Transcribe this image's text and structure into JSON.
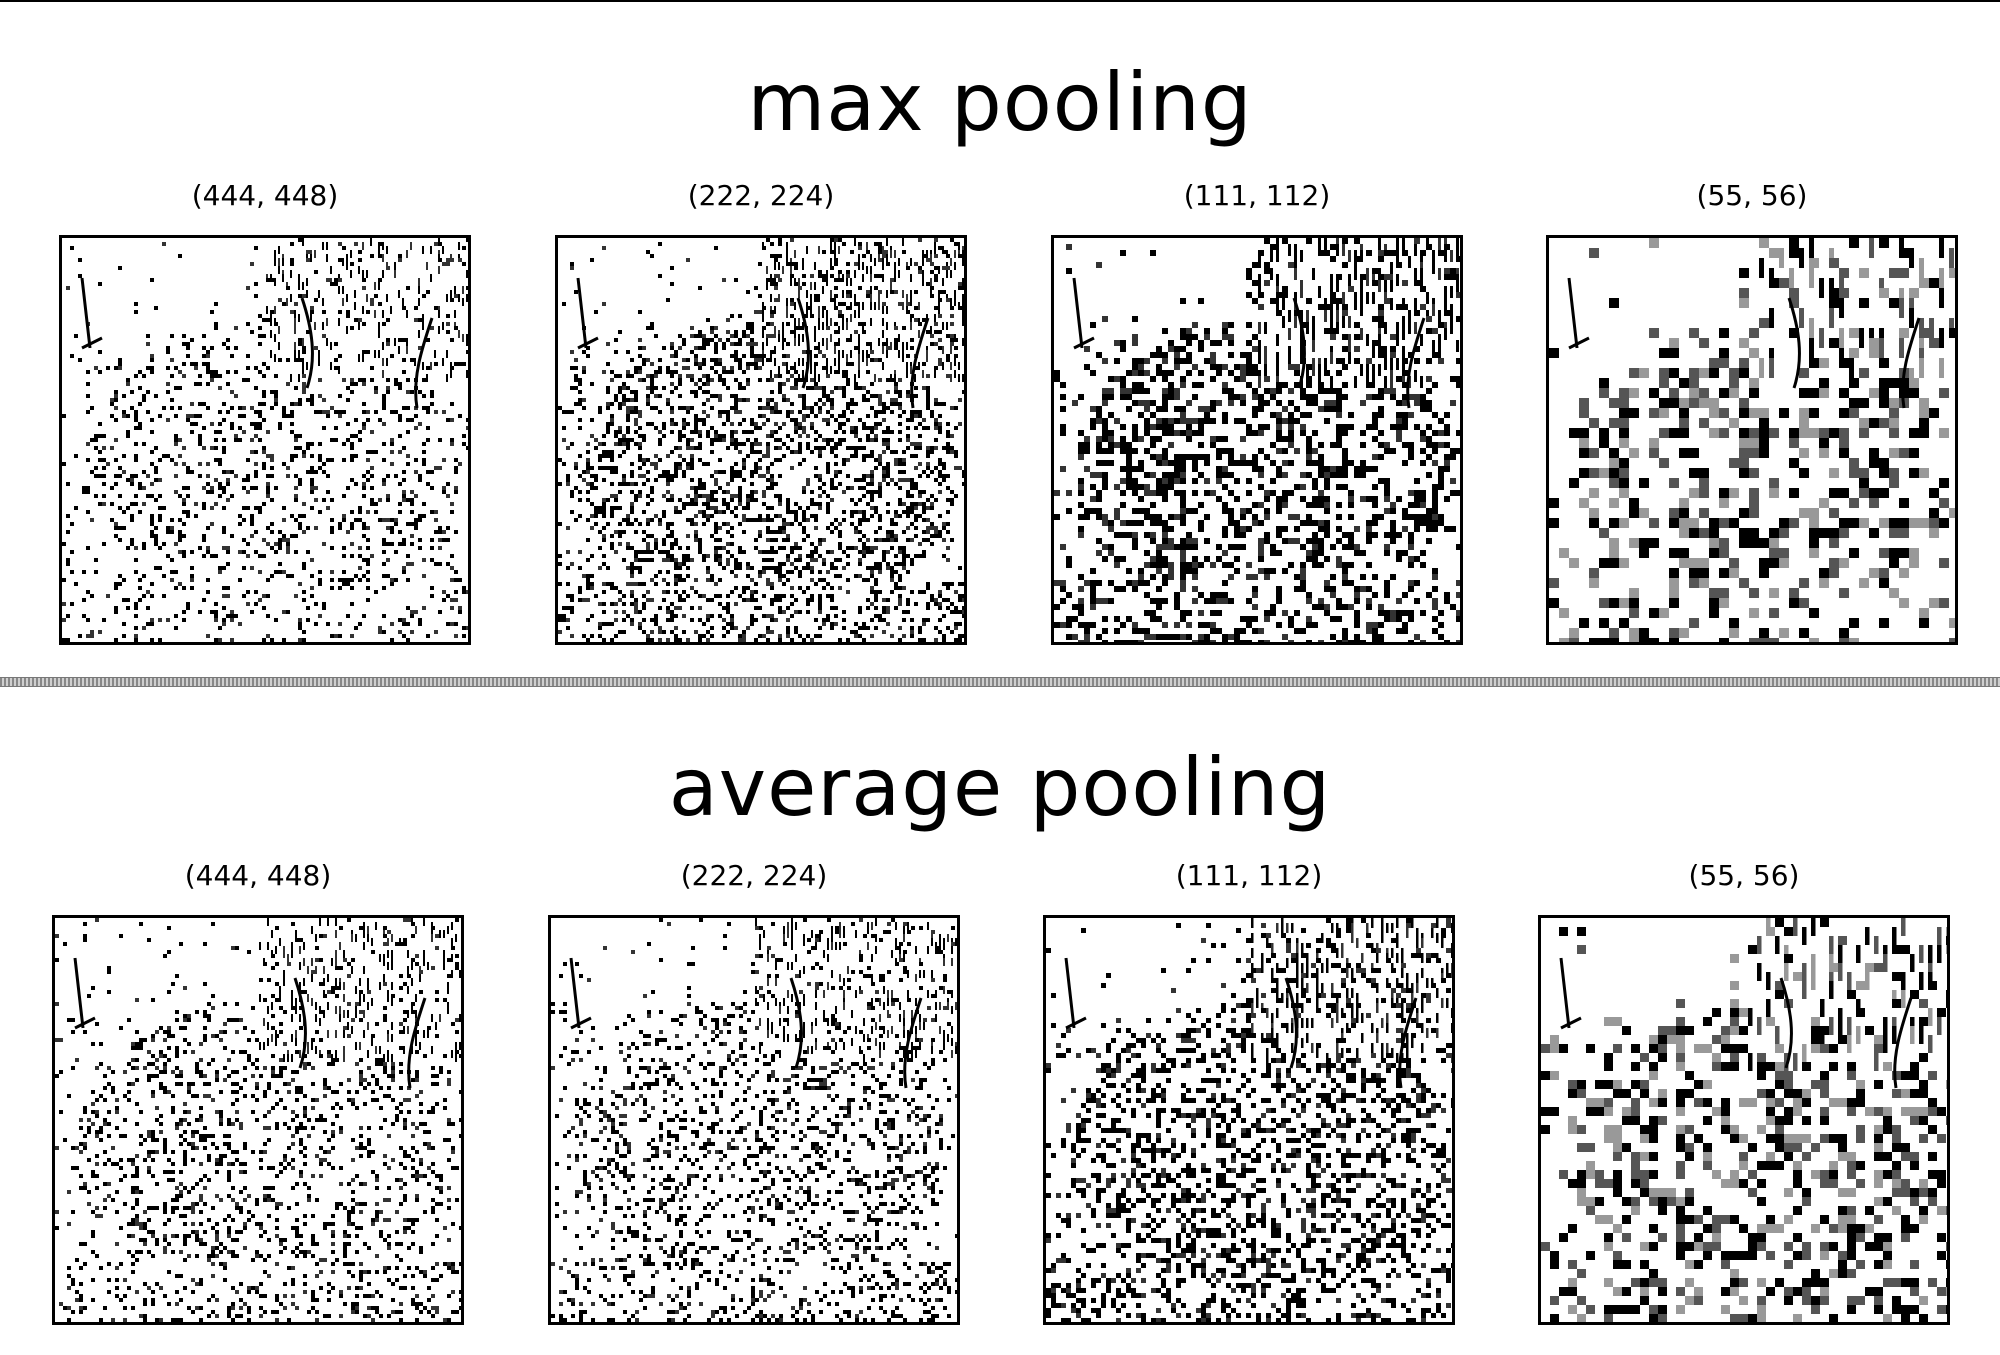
{
  "sections": [
    {
      "title": "max pooling",
      "panels": [
        {
          "label": "(444, 448)"
        },
        {
          "label": "(222, 224)"
        },
        {
          "label": "(111, 112)"
        },
        {
          "label": "(55, 56)"
        }
      ]
    },
    {
      "title": "average pooling",
      "panels": [
        {
          "label": "(444, 448)"
        },
        {
          "label": "(222, 224)"
        },
        {
          "label": "(111, 112)"
        },
        {
          "label": "(55, 56)"
        }
      ]
    }
  ]
}
